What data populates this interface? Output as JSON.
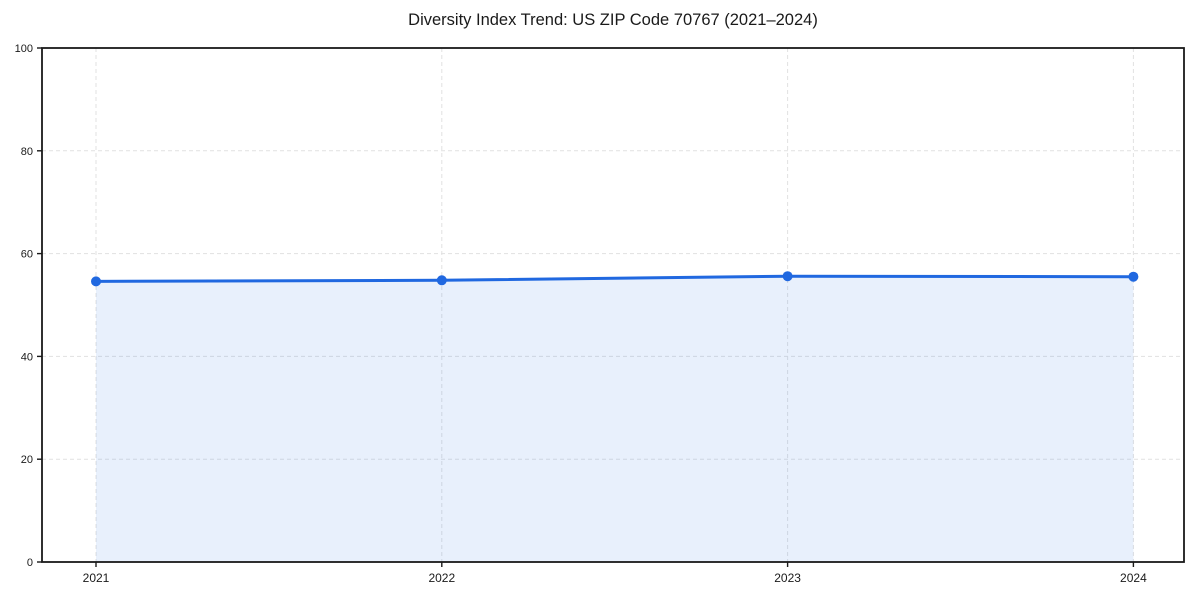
{
  "chart_data": {
    "type": "area",
    "title": "Diversity Index Trend: US ZIP Code 70767 (2021–2024)",
    "x": [
      "2021",
      "2022",
      "2023",
      "2024"
    ],
    "values": [
      54.6,
      54.8,
      55.6,
      55.5
    ],
    "xlabel": "",
    "ylabel": "",
    "ylim": [
      0,
      100
    ],
    "yticks": [
      0,
      20,
      40,
      60,
      80,
      100
    ],
    "grid": true,
    "grid_style": "dashed",
    "legend": "none",
    "marker": "circle",
    "colors": {
      "line": "#2068e0",
      "marker": "#2068e0",
      "fill": "#2068e0",
      "fill_opacity": 0.1,
      "grid": "#e1e1e1",
      "spine": "#1a1a1a",
      "tick_label": "#1a1a1a",
      "title": "#111111",
      "background": "#ffffff"
    }
  }
}
